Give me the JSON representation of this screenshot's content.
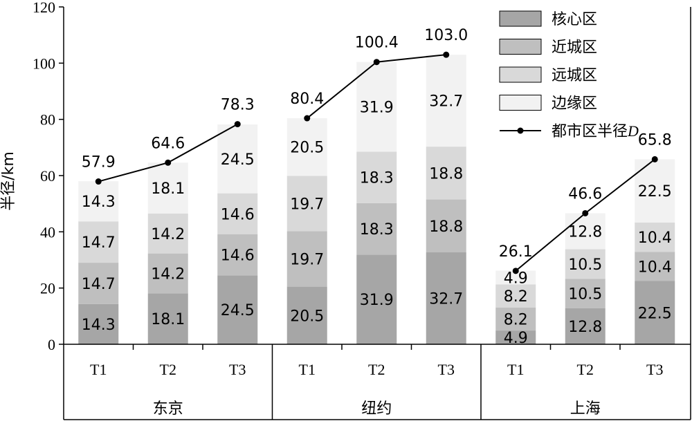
{
  "chart_data": {
    "type": "bar",
    "stacked": true,
    "groups": [
      {
        "name": "东京",
        "categories": [
          "T1",
          "T2",
          "T3"
        ]
      },
      {
        "name": "纽约",
        "categories": [
          "T1",
          "T2",
          "T3"
        ]
      },
      {
        "name": "上海",
        "categories": [
          "T1",
          "T2",
          "T3"
        ]
      }
    ],
    "series": [
      {
        "name": "核心区",
        "color": "#a6a6a6",
        "values": [
          14.3,
          18.1,
          24.5,
          20.5,
          31.9,
          32.7,
          4.9,
          12.8,
          22.5
        ]
      },
      {
        "name": "近城区",
        "color": "#bfbfbf",
        "values": [
          14.7,
          14.2,
          14.6,
          19.7,
          18.3,
          18.8,
          8.2,
          10.5,
          10.4
        ]
      },
      {
        "name": "远城区",
        "color": "#d9d9d9",
        "values": [
          14.7,
          14.2,
          14.6,
          19.7,
          18.3,
          18.8,
          8.2,
          10.5,
          10.4
        ]
      },
      {
        "name": "边缘区",
        "color": "#f2f2f2",
        "values": [
          14.3,
          18.1,
          24.5,
          20.5,
          31.9,
          32.7,
          4.9,
          12.8,
          22.5
        ]
      }
    ],
    "segment_labels": [
      [
        "14.3",
        "18.1",
        "24.5",
        "20.5",
        "31.9",
        "32.7",
        "4.9",
        "12.8",
        "22.5"
      ],
      [
        "14.7",
        "14.2",
        "14.6",
        "19.7",
        "18.3",
        "18.8",
        "8.2",
        "10.5",
        "10.4"
      ],
      [
        "14.7",
        "14.2",
        "14.6",
        "19.7",
        "18.3",
        "18.8",
        "8.2",
        "10.5",
        "10.4"
      ],
      [
        "14.3",
        "18.1",
        "24.5",
        "20.5",
        "31.9",
        "32.7",
        "4.9",
        "12.8",
        "22.5"
      ]
    ],
    "line_series": {
      "name_prefix": "都市区半径",
      "name_suffix": "D",
      "values": [
        57.9,
        64.6,
        78.3,
        80.4,
        100.4,
        103.0,
        26.1,
        46.6,
        65.8
      ],
      "labels": [
        "57.9",
        "64.6",
        "78.3",
        "80.4",
        "100.4",
        "103.0",
        "26.1",
        "46.6",
        "65.8"
      ]
    },
    "ylabel": "半径/km",
    "ylim": [
      0,
      120
    ],
    "yticks": [
      "0",
      "20",
      "40",
      "60",
      "80",
      "100",
      "120"
    ],
    "legend_position": "top-right",
    "grid": false
  }
}
